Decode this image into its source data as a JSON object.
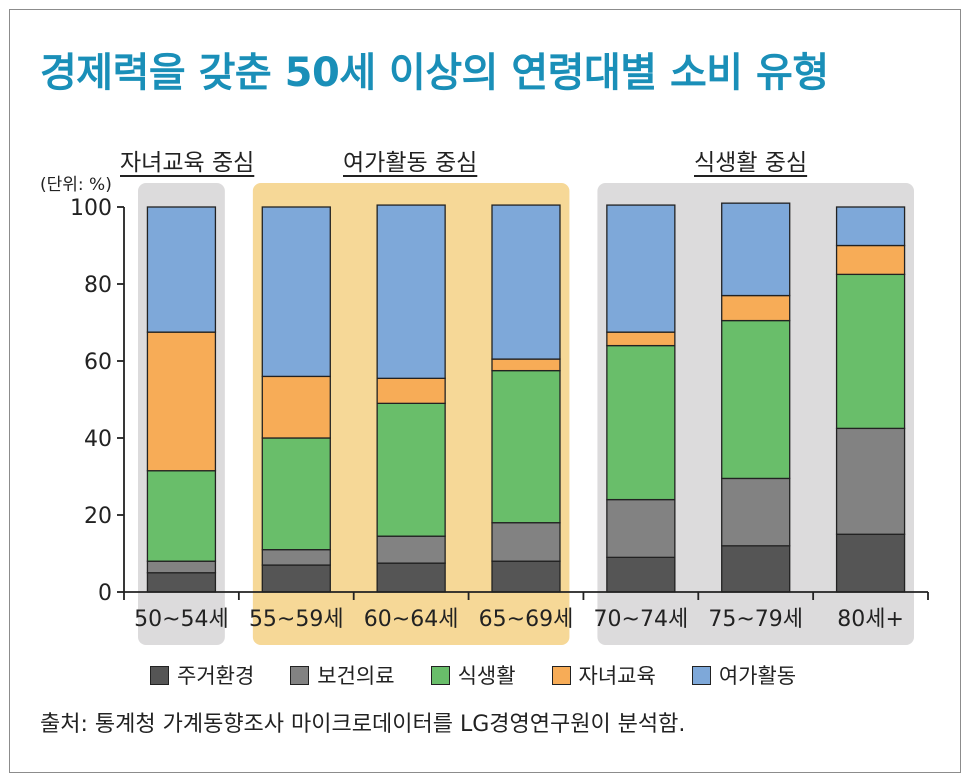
{
  "title": "경제력을 갖춘 50세 이상의 연령대별 소비 유형",
  "unit_label": "(단위: %)",
  "groups": [
    {
      "label": "자녀교육 중심",
      "first": 0,
      "last": 0,
      "color": "#dcdbdc"
    },
    {
      "label": "여가활동 중심",
      "first": 1,
      "last": 3,
      "color": "#f6d897"
    },
    {
      "label": "식생활 중심",
      "first": 4,
      "last": 6,
      "color": "#dcdbdc"
    }
  ],
  "legend": [
    {
      "name": "주거환경",
      "color": "#555555"
    },
    {
      "name": "보건의료",
      "color": "#828282"
    },
    {
      "name": "식생활",
      "color": "#69be6a"
    },
    {
      "name": "자녀교육",
      "color": "#f7ac57"
    },
    {
      "name": "여가활동",
      "color": "#7ea8d9"
    }
  ],
  "source": "출처: 통계청 가계동향조사 마이크로데이터를 LG경영연구원이 분석함.",
  "chart_data": {
    "type": "bar",
    "stacked": true,
    "categories": [
      "50~54세",
      "55~59세",
      "60~64세",
      "65~69세",
      "70~74세",
      "75~79세",
      "80세+"
    ],
    "yticks": [
      "0",
      "20",
      "40",
      "60",
      "80",
      "100"
    ],
    "ylim": [
      0,
      100
    ],
    "series": [
      {
        "name": "주거환경",
        "values": [
          5,
          7,
          7.5,
          8,
          9,
          12,
          15
        ]
      },
      {
        "name": "보건의료",
        "values": [
          3,
          4,
          7,
          10,
          15,
          17.5,
          27.5
        ]
      },
      {
        "name": "식생활",
        "values": [
          23.5,
          29,
          34.5,
          39.5,
          40,
          41,
          40
        ]
      },
      {
        "name": "자녀교육",
        "values": [
          36,
          16,
          6.5,
          3,
          3.5,
          6.5,
          7.5
        ]
      },
      {
        "name": "여가활동",
        "values": [
          32.5,
          44,
          45,
          40,
          33,
          24,
          10
        ]
      }
    ]
  }
}
